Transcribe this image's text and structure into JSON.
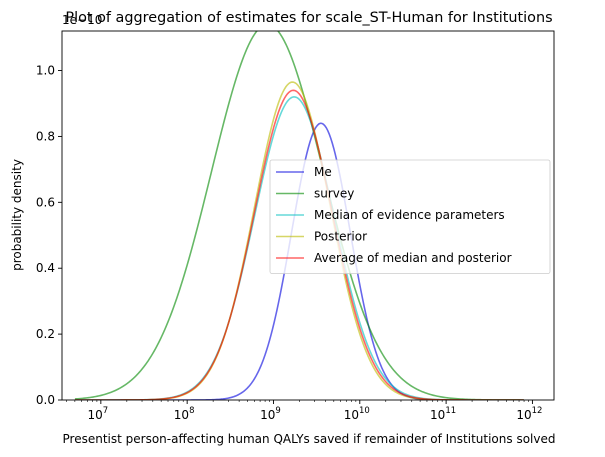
{
  "chart_data": {
    "type": "line",
    "title": "Plot of aggregation of estimates for scale_ST-Human for Institutions",
    "xlabel": "Presentist person-affecting human QALYs saved if remainder of Institutions solved",
    "ylabel": "probability density",
    "x_scale": "log",
    "xlim_log10": [
      6.55,
      12.25
    ],
    "ylim": [
      0,
      1.12
    ],
    "y_offset_text": "1e−10",
    "x_ticks": [
      {
        "exp": 7,
        "base": "10",
        "sup": "7"
      },
      {
        "exp": 8,
        "base": "10",
        "sup": "8"
      },
      {
        "exp": 9,
        "base": "10",
        "sup": "9"
      },
      {
        "exp": 10,
        "base": "10",
        "sup": "10"
      },
      {
        "exp": 11,
        "base": "10",
        "sup": "11"
      },
      {
        "exp": 12,
        "base": "10",
        "sup": "12"
      }
    ],
    "y_ticks": [
      {
        "value": 0.0,
        "label": "0.0"
      },
      {
        "value": 0.2,
        "label": "0.2"
      },
      {
        "value": 0.4,
        "label": "0.4"
      },
      {
        "value": 0.6,
        "label": "0.6"
      },
      {
        "value": 0.8,
        "label": "0.8"
      },
      {
        "value": 1.0,
        "label": "1.0"
      }
    ],
    "legend_position": "center-right",
    "series": [
      {
        "name": "Me",
        "color": "#0000dd",
        "mu_log10": 9.55,
        "sigma_log10": 0.34,
        "peak": 0.84
      },
      {
        "name": "survey",
        "color": "#008800",
        "mu_log10": 8.93,
        "sigma_log10": 0.65,
        "peak": 1.14
      },
      {
        "name": "Median of evidence parameters",
        "color": "#00c0c0",
        "mu_log10": 9.24,
        "sigma_log10": 0.46,
        "peak": 0.92
      },
      {
        "name": "Posterior",
        "color": "#bbbb00",
        "mu_log10": 9.22,
        "sigma_log10": 0.44,
        "peak": 0.965
      },
      {
        "name": "Average of median and posterior",
        "color": "#ff0000",
        "mu_log10": 9.23,
        "sigma_log10": 0.45,
        "peak": 0.94
      }
    ],
    "x_range_log10": [
      6.7,
      11.9
    ]
  }
}
